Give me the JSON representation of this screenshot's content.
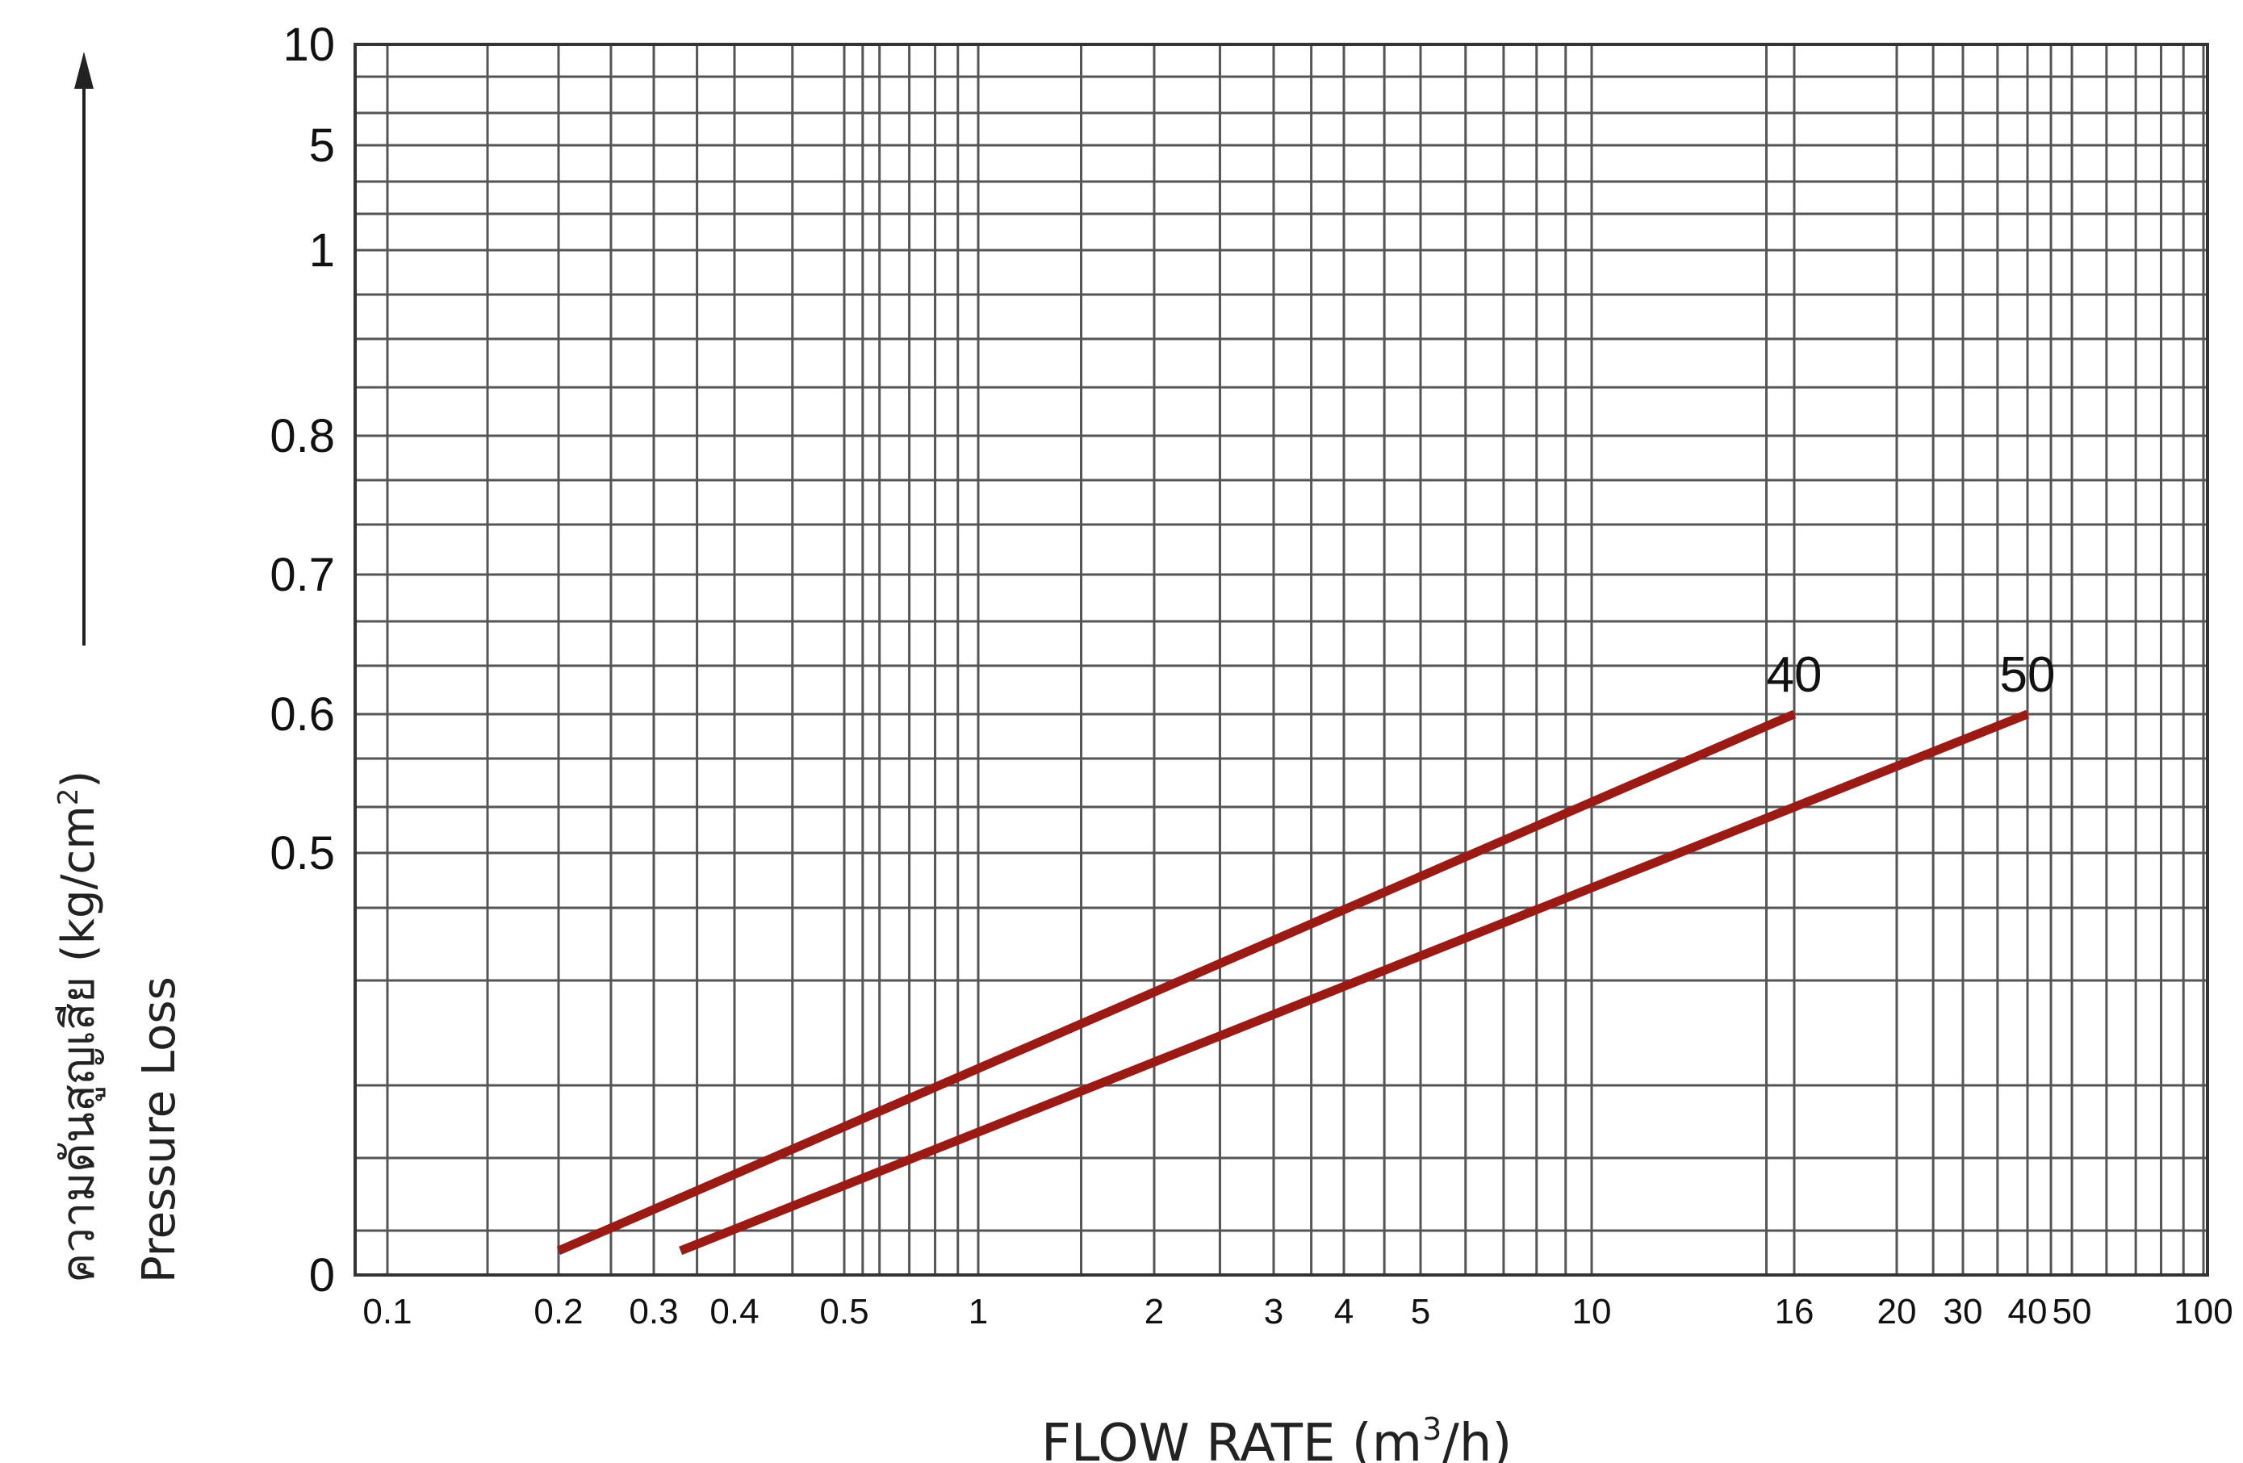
{
  "chart_data": {
    "type": "line",
    "title": "",
    "xlabel": {
      "prefix": "FLOW RATE (m",
      "superscript": "3",
      "suffix": "/h)"
    },
    "ylabel": {
      "thai_prefix": "ความดันสูญเสีย (kg/cm",
      "superscript": "2",
      "suffix": ")",
      "english": "Pressure Loss"
    },
    "x_ticks": [
      {
        "value": 0.1,
        "label": "0.1"
      },
      {
        "value": 0.2,
        "label": "0.2"
      },
      {
        "value": 0.3,
        "label": "0.3"
      },
      {
        "value": 0.4,
        "label": "0.4"
      },
      {
        "value": 0.5,
        "label": "0.5"
      },
      {
        "value": 1,
        "label": "1"
      },
      {
        "value": 2,
        "label": "2"
      },
      {
        "value": 3,
        "label": "3"
      },
      {
        "value": 4,
        "label": "4"
      },
      {
        "value": 5,
        "label": "5"
      },
      {
        "value": 10,
        "label": "10"
      },
      {
        "value": 16,
        "label": "16"
      },
      {
        "value": 20,
        "label": "20"
      },
      {
        "value": 30,
        "label": "30"
      },
      {
        "value": 40,
        "label": "40"
      },
      {
        "value": 50,
        "label": "50"
      },
      {
        "value": 100,
        "label": "100"
      }
    ],
    "y_ticks": [
      "0",
      "0.5",
      "0.6",
      "0.7",
      "0.8",
      "1",
      "5",
      "10"
    ],
    "series": [
      {
        "name": "40",
        "color": "#9b1a14",
        "points": [
          [
            0.2,
            0.0
          ],
          [
            16,
            0.6
          ]
        ]
      },
      {
        "name": "50",
        "color": "#9b1a14",
        "points": [
          [
            0.33,
            0.0
          ],
          [
            40,
            0.6
          ]
        ]
      }
    ],
    "grid": true,
    "legend": "none (series labelled at line ends)",
    "arrow": "up arrow beside y-axis title"
  }
}
